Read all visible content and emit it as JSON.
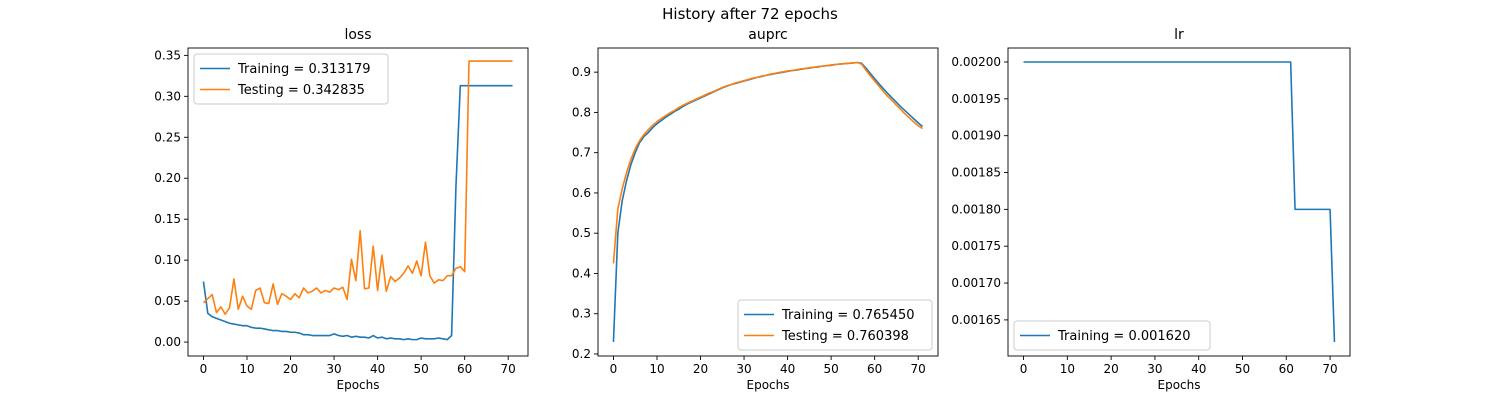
{
  "figure": {
    "suptitle": "History after 72 epochs"
  },
  "chart_data": [
    {
      "type": "line",
      "title": "loss",
      "xlabel": "Epochs",
      "ylabel": "",
      "xlim": [
        -3.55,
        74.55
      ],
      "ylim": [
        -0.017,
        0.359
      ],
      "xticks": [
        0,
        10,
        20,
        30,
        40,
        50,
        60,
        70
      ],
      "xtick_labels": [
        "0",
        "10",
        "20",
        "30",
        "40",
        "50",
        "60",
        "70"
      ],
      "yticks": [
        0.0,
        0.05,
        0.1,
        0.15,
        0.2,
        0.25,
        0.3,
        0.35
      ],
      "ytick_labels": [
        "0.00",
        "0.05",
        "0.10",
        "0.15",
        "0.20",
        "0.25",
        "0.30",
        "0.35"
      ],
      "grid": false,
      "legend_position": "upper-left",
      "x": [
        0,
        1,
        2,
        3,
        4,
        5,
        6,
        7,
        8,
        9,
        10,
        11,
        12,
        13,
        14,
        15,
        16,
        17,
        18,
        19,
        20,
        21,
        22,
        23,
        24,
        25,
        26,
        27,
        28,
        29,
        30,
        31,
        32,
        33,
        34,
        35,
        36,
        37,
        38,
        39,
        40,
        41,
        42,
        43,
        44,
        45,
        46,
        47,
        48,
        49,
        50,
        51,
        52,
        53,
        54,
        55,
        56,
        57,
        58,
        59,
        60,
        61,
        62,
        63,
        64,
        65,
        66,
        67,
        68,
        69,
        70,
        71
      ],
      "series": [
        {
          "name": "Training = 0.313179",
          "color": "#1f77b4",
          "values": [
            0.074,
            0.035,
            0.031,
            0.029,
            0.027,
            0.025,
            0.023,
            0.022,
            0.021,
            0.02,
            0.02,
            0.018,
            0.017,
            0.017,
            0.016,
            0.015,
            0.014,
            0.014,
            0.013,
            0.013,
            0.012,
            0.012,
            0.011,
            0.009,
            0.009,
            0.008,
            0.008,
            0.008,
            0.008,
            0.008,
            0.01,
            0.008,
            0.007,
            0.008,
            0.006,
            0.007,
            0.006,
            0.006,
            0.005,
            0.008,
            0.005,
            0.006,
            0.004,
            0.005,
            0.004,
            0.004,
            0.003,
            0.004,
            0.003,
            0.003,
            0.005,
            0.004,
            0.004,
            0.004,
            0.005,
            0.004,
            0.003,
            0.008,
            0.19,
            0.313,
            0.313,
            0.313,
            0.313,
            0.313,
            0.313,
            0.313,
            0.313,
            0.313,
            0.313,
            0.313,
            0.313,
            0.313
          ]
        },
        {
          "name": "Testing = 0.342835",
          "color": "#ff7f0e",
          "values": [
            0.048,
            0.053,
            0.058,
            0.036,
            0.043,
            0.034,
            0.042,
            0.077,
            0.04,
            0.056,
            0.044,
            0.04,
            0.063,
            0.066,
            0.048,
            0.047,
            0.071,
            0.046,
            0.059,
            0.056,
            0.052,
            0.059,
            0.054,
            0.066,
            0.06,
            0.062,
            0.066,
            0.06,
            0.063,
            0.061,
            0.066,
            0.064,
            0.067,
            0.052,
            0.101,
            0.075,
            0.136,
            0.065,
            0.066,
            0.117,
            0.063,
            0.106,
            0.062,
            0.08,
            0.074,
            0.078,
            0.084,
            0.093,
            0.084,
            0.099,
            0.081,
            0.122,
            0.081,
            0.072,
            0.076,
            0.075,
            0.081,
            0.081,
            0.09,
            0.092,
            0.086,
            0.343,
            0.343,
            0.343,
            0.343,
            0.343,
            0.343,
            0.343,
            0.343,
            0.343,
            0.343,
            0.343
          ]
        }
      ]
    },
    {
      "type": "line",
      "title": "auprc",
      "xlabel": "Epochs",
      "ylabel": "",
      "xlim": [
        -3.55,
        74.55
      ],
      "ylim": [
        0.195,
        0.96
      ],
      "xticks": [
        0,
        10,
        20,
        30,
        40,
        50,
        60,
        70
      ],
      "xtick_labels": [
        "0",
        "10",
        "20",
        "30",
        "40",
        "50",
        "60",
        "70"
      ],
      "yticks": [
        0.2,
        0.3,
        0.4,
        0.5,
        0.6,
        0.7,
        0.8,
        0.9
      ],
      "ytick_labels": [
        "0.2",
        "0.3",
        "0.4",
        "0.5",
        "0.6",
        "0.7",
        "0.8",
        "0.9"
      ],
      "grid": false,
      "legend_position": "lower-right",
      "x": [
        0,
        1,
        2,
        3,
        4,
        5,
        6,
        7,
        8,
        9,
        10,
        11,
        12,
        13,
        14,
        15,
        16,
        17,
        18,
        19,
        20,
        21,
        22,
        23,
        24,
        25,
        26,
        27,
        28,
        29,
        30,
        31,
        32,
        33,
        34,
        35,
        36,
        37,
        38,
        39,
        40,
        41,
        42,
        43,
        44,
        45,
        46,
        47,
        48,
        49,
        50,
        51,
        52,
        53,
        54,
        55,
        56,
        57,
        58,
        59,
        60,
        61,
        62,
        63,
        64,
        65,
        66,
        67,
        68,
        69,
        70,
        71
      ],
      "series": [
        {
          "name": "Training = 0.765450",
          "color": "#1f77b4",
          "values": [
            0.23,
            0.5,
            0.58,
            0.63,
            0.67,
            0.7,
            0.725,
            0.74,
            0.75,
            0.762,
            0.772,
            0.78,
            0.788,
            0.795,
            0.802,
            0.808,
            0.815,
            0.821,
            0.826,
            0.831,
            0.836,
            0.841,
            0.846,
            0.851,
            0.856,
            0.861,
            0.865,
            0.869,
            0.872,
            0.875,
            0.878,
            0.881,
            0.884,
            0.887,
            0.889,
            0.892,
            0.894,
            0.896,
            0.898,
            0.9,
            0.902,
            0.904,
            0.905,
            0.907,
            0.909,
            0.91,
            0.912,
            0.913,
            0.915,
            0.916,
            0.917,
            0.919,
            0.92,
            0.921,
            0.922,
            0.923,
            0.924,
            0.922,
            0.91,
            0.897,
            0.884,
            0.871,
            0.859,
            0.847,
            0.836,
            0.825,
            0.814,
            0.804,
            0.794,
            0.784,
            0.774,
            0.765
          ]
        },
        {
          "name": "Testing = 0.760398",
          "color": "#ff7f0e",
          "values": [
            0.425,
            0.56,
            0.61,
            0.65,
            0.683,
            0.71,
            0.73,
            0.745,
            0.757,
            0.768,
            0.777,
            0.785,
            0.792,
            0.799,
            0.805,
            0.812,
            0.818,
            0.823,
            0.828,
            0.833,
            0.838,
            0.843,
            0.848,
            0.852,
            0.857,
            0.862,
            0.866,
            0.869,
            0.873,
            0.876,
            0.879,
            0.882,
            0.885,
            0.887,
            0.89,
            0.892,
            0.895,
            0.897,
            0.899,
            0.901,
            0.903,
            0.904,
            0.906,
            0.908,
            0.909,
            0.911,
            0.912,
            0.914,
            0.915,
            0.916,
            0.918,
            0.919,
            0.92,
            0.921,
            0.922,
            0.923,
            0.924,
            0.92,
            0.905,
            0.891,
            0.878,
            0.865,
            0.852,
            0.84,
            0.829,
            0.818,
            0.807,
            0.796,
            0.786,
            0.776,
            0.767,
            0.76
          ]
        }
      ]
    },
    {
      "type": "line",
      "title": "lr",
      "xlabel": "Epochs",
      "ylabel": "",
      "xlim": [
        -3.55,
        74.55
      ],
      "ylim": [
        0.001601,
        0.002019
      ],
      "xticks": [
        0,
        10,
        20,
        30,
        40,
        50,
        60,
        70
      ],
      "xtick_labels": [
        "0",
        "10",
        "20",
        "30",
        "40",
        "50",
        "60",
        "70"
      ],
      "yticks": [
        0.00165,
        0.0017,
        0.00175,
        0.0018,
        0.00185,
        0.0019,
        0.00195,
        0.002
      ],
      "ytick_labels": [
        "0.00165",
        "0.00170",
        "0.00175",
        "0.00180",
        "0.00185",
        "0.00190",
        "0.00195",
        "0.00200"
      ],
      "grid": false,
      "legend_position": "lower-left",
      "x": [
        0,
        1,
        2,
        3,
        4,
        5,
        6,
        7,
        8,
        9,
        10,
        11,
        12,
        13,
        14,
        15,
        16,
        17,
        18,
        19,
        20,
        21,
        22,
        23,
        24,
        25,
        26,
        27,
        28,
        29,
        30,
        31,
        32,
        33,
        34,
        35,
        36,
        37,
        38,
        39,
        40,
        41,
        42,
        43,
        44,
        45,
        46,
        47,
        48,
        49,
        50,
        51,
        52,
        53,
        54,
        55,
        56,
        57,
        58,
        59,
        60,
        61,
        62,
        63,
        64,
        65,
        66,
        67,
        68,
        69,
        70,
        71
      ],
      "series": [
        {
          "name": "Training = 0.001620",
          "color": "#1f77b4",
          "values": [
            0.002,
            0.002,
            0.002,
            0.002,
            0.002,
            0.002,
            0.002,
            0.002,
            0.002,
            0.002,
            0.002,
            0.002,
            0.002,
            0.002,
            0.002,
            0.002,
            0.002,
            0.002,
            0.002,
            0.002,
            0.002,
            0.002,
            0.002,
            0.002,
            0.002,
            0.002,
            0.002,
            0.002,
            0.002,
            0.002,
            0.002,
            0.002,
            0.002,
            0.002,
            0.002,
            0.002,
            0.002,
            0.002,
            0.002,
            0.002,
            0.002,
            0.002,
            0.002,
            0.002,
            0.002,
            0.002,
            0.002,
            0.002,
            0.002,
            0.002,
            0.002,
            0.002,
            0.002,
            0.002,
            0.002,
            0.002,
            0.002,
            0.002,
            0.002,
            0.002,
            0.002,
            0.002,
            0.0018,
            0.0018,
            0.0018,
            0.0018,
            0.0018,
            0.0018,
            0.0018,
            0.0018,
            0.0018,
            0.00162
          ]
        }
      ]
    }
  ]
}
